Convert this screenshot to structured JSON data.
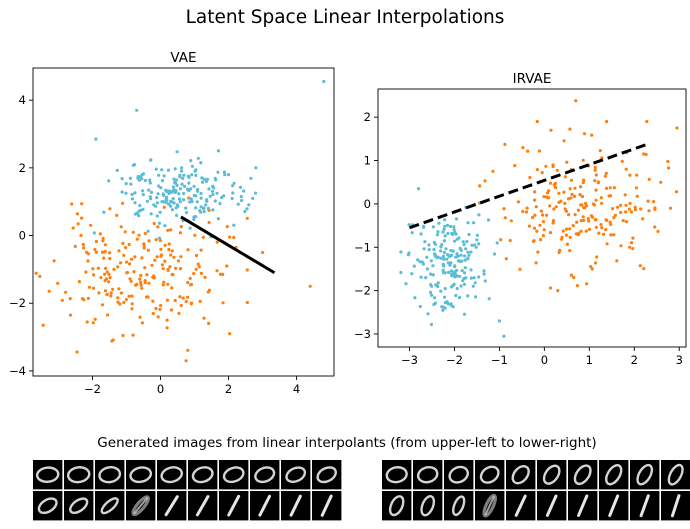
{
  "figure": {
    "suptitle": "Latent Space Linear Interpolations",
    "caption": "Generated images from linear interpolants (from upper-left to lower-right)"
  },
  "colors": {
    "orange": "#ff7f0e",
    "cyan": "#5bbcd6",
    "axis": "#000000",
    "strip_bg": "#000000",
    "digit": "#e6e6e6"
  },
  "chart_data": [
    {
      "type": "scatter",
      "title": "VAE",
      "xlabel": "",
      "ylabel": "",
      "xlim": [
        -3.75,
        5.1
      ],
      "ylim": [
        -4.15,
        4.95
      ],
      "xticks": [
        -2,
        0,
        2,
        4
      ],
      "yticks": [
        -4,
        -2,
        0,
        2,
        4
      ],
      "grid": false,
      "clusters": [
        {
          "color": "orange",
          "n": 230,
          "cx": -0.7,
          "cy": -1.1,
          "sx": 1.25,
          "sy": 0.9,
          "seed": 11
        },
        {
          "color": "cyan",
          "n": 200,
          "cx": 0.5,
          "cy": 1.2,
          "sx": 0.95,
          "sy": 0.5,
          "seed": 23
        }
      ],
      "outliers": [
        {
          "x": 4.8,
          "y": 4.55,
          "color": "cyan"
        },
        {
          "x": -0.7,
          "y": 3.7,
          "color": "cyan"
        },
        {
          "x": -1.9,
          "y": 2.85,
          "color": "cyan"
        },
        {
          "x": 2.8,
          "y": 2.0,
          "color": "cyan"
        },
        {
          "x": -3.45,
          "y": -2.65,
          "color": "orange"
        },
        {
          "x": 0.75,
          "y": -3.7,
          "color": "orange"
        },
        {
          "x": 4.4,
          "y": -1.5,
          "color": "orange"
        },
        {
          "x": 3.0,
          "y": -0.5,
          "color": "orange"
        }
      ],
      "interpolation_line": {
        "from": [
          0.6,
          0.55
        ],
        "to": [
          3.35,
          -1.1
        ],
        "style": "solid"
      }
    },
    {
      "type": "scatter",
      "title": "IRVAE",
      "xlabel": "",
      "ylabel": "",
      "xlim": [
        -3.7,
        3.15
      ],
      "ylim": [
        -3.3,
        2.65
      ],
      "xticks": [
        -3,
        -2,
        -1,
        0,
        1,
        2,
        3
      ],
      "yticks": [
        -3,
        -2,
        -1,
        0,
        1,
        2
      ],
      "grid": false,
      "clusters": [
        {
          "color": "orange",
          "n": 230,
          "cx": 0.9,
          "cy": -0.05,
          "sx": 0.9,
          "sy": 0.75,
          "seed": 37
        },
        {
          "color": "cyan",
          "n": 190,
          "cx": -2.15,
          "cy": -1.35,
          "sx": 0.4,
          "sy": 0.55,
          "seed": 53
        }
      ],
      "outliers": [
        {
          "x": -1.0,
          "y": -2.7,
          "color": "cyan"
        },
        {
          "x": -0.9,
          "y": -3.05,
          "color": "cyan"
        },
        {
          "x": -2.8,
          "y": 0.35,
          "color": "cyan"
        },
        {
          "x": 0.7,
          "y": 2.38,
          "color": "orange"
        },
        {
          "x": 2.95,
          "y": 1.75,
          "color": "orange"
        },
        {
          "x": -1.05,
          "y": -0.9,
          "color": "cyan"
        }
      ],
      "interpolation_line": {
        "from": [
          -3.0,
          -0.55
        ],
        "to": [
          2.3,
          1.38
        ],
        "style": "dashed"
      }
    }
  ],
  "strips": [
    {
      "label": "VAE",
      "rows": [
        [
          {
            "type": "ring",
            "rx": 0.36,
            "ry": 0.24,
            "rot": -5
          },
          {
            "type": "ring",
            "rx": 0.36,
            "ry": 0.25,
            "rot": -8
          },
          {
            "type": "ring",
            "rx": 0.35,
            "ry": 0.25,
            "rot": -10
          },
          {
            "type": "ring",
            "rx": 0.35,
            "ry": 0.24,
            "rot": -12
          },
          {
            "type": "ring",
            "rx": 0.35,
            "ry": 0.24,
            "rot": -15
          },
          {
            "type": "ring",
            "rx": 0.34,
            "ry": 0.24,
            "rot": -18
          },
          {
            "type": "ring",
            "rx": 0.34,
            "ry": 0.23,
            "rot": -20
          },
          {
            "type": "ring",
            "rx": 0.33,
            "ry": 0.23,
            "rot": -22
          },
          {
            "type": "ring",
            "rx": 0.33,
            "ry": 0.22,
            "rot": -25
          },
          {
            "type": "ring",
            "rx": 0.33,
            "ry": 0.22,
            "rot": -28
          }
        ],
        [
          {
            "type": "ring",
            "rx": 0.33,
            "ry": 0.2,
            "rot": -32
          },
          {
            "type": "ring",
            "rx": 0.33,
            "ry": 0.18,
            "rot": -36
          },
          {
            "type": "ring",
            "rx": 0.34,
            "ry": 0.14,
            "rot": -42
          },
          {
            "type": "blur",
            "rot": -50
          },
          {
            "type": "stroke",
            "rot": -58
          },
          {
            "type": "stroke",
            "rot": -60
          },
          {
            "type": "stroke",
            "rot": -62
          },
          {
            "type": "stroke",
            "rot": -63
          },
          {
            "type": "stroke",
            "rot": -64
          },
          {
            "type": "stroke",
            "rot": -65
          }
        ]
      ]
    },
    {
      "label": "IRVAE",
      "rows": [
        [
          {
            "type": "ring",
            "rx": 0.34,
            "ry": 0.25,
            "rot": -10
          },
          {
            "type": "ring",
            "rx": 0.33,
            "ry": 0.25,
            "rot": -15
          },
          {
            "type": "ring",
            "rx": 0.32,
            "ry": 0.25,
            "rot": -25
          },
          {
            "type": "ring",
            "rx": 0.32,
            "ry": 0.24,
            "rot": -35
          },
          {
            "type": "ring",
            "rx": 0.33,
            "ry": 0.22,
            "rot": -50
          },
          {
            "type": "ring",
            "rx": 0.34,
            "ry": 0.21,
            "rot": -55
          },
          {
            "type": "ring",
            "rx": 0.35,
            "ry": 0.21,
            "rot": -55
          },
          {
            "type": "ring",
            "rx": 0.36,
            "ry": 0.2,
            "rot": -58
          },
          {
            "type": "ring",
            "rx": 0.36,
            "ry": 0.19,
            "rot": -60
          },
          {
            "type": "ring",
            "rx": 0.36,
            "ry": 0.18,
            "rot": -62
          }
        ],
        [
          {
            "type": "ring",
            "rx": 0.34,
            "ry": 0.19,
            "rot": -65
          },
          {
            "type": "ring",
            "rx": 0.34,
            "ry": 0.18,
            "rot": -68
          },
          {
            "type": "ring",
            "rx": 0.33,
            "ry": 0.15,
            "rot": -68
          },
          {
            "type": "blur",
            "rot": -65
          },
          {
            "type": "stroke",
            "rot": -65
          },
          {
            "type": "stroke",
            "rot": -66
          },
          {
            "type": "stroke",
            "rot": -67
          },
          {
            "type": "stroke",
            "rot": -68
          },
          {
            "type": "stroke",
            "rot": -70
          },
          {
            "type": "stroke",
            "rot": -72
          }
        ]
      ]
    }
  ]
}
